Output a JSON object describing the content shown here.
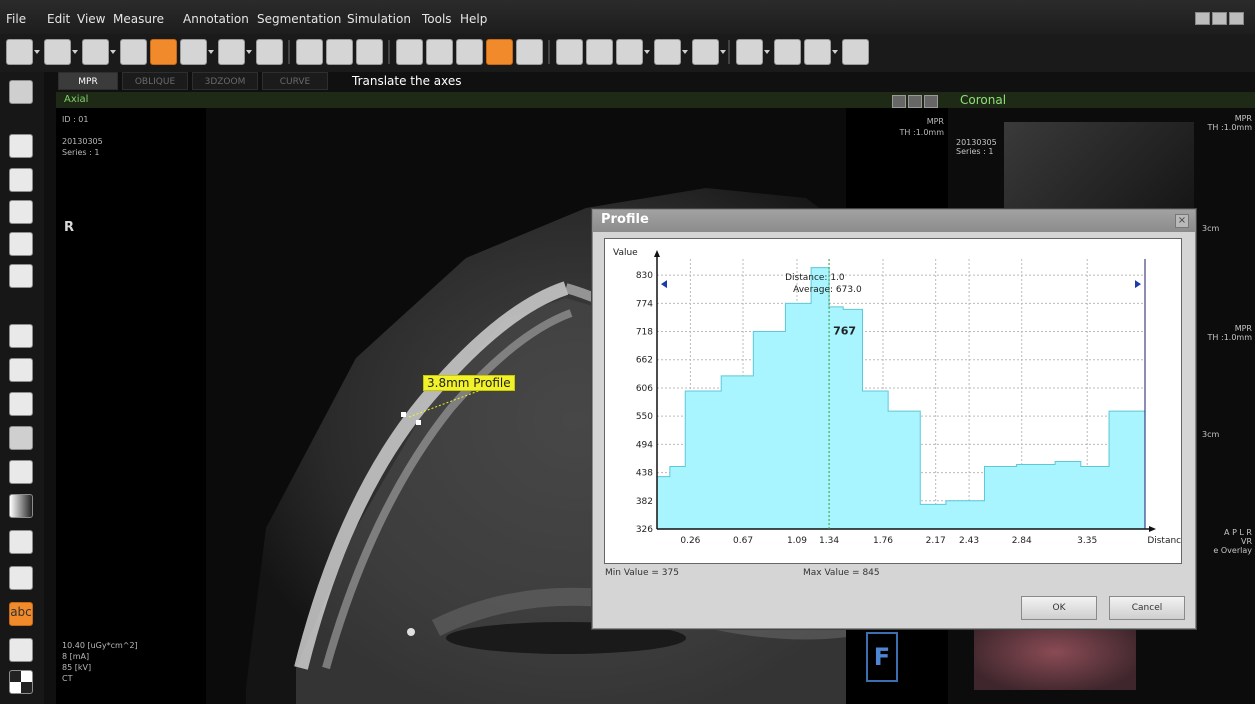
{
  "menu": [
    "File",
    "Edit",
    "View",
    "Measure",
    "Annotation",
    "Segmentation",
    "Simulation",
    "Tools",
    "Help"
  ],
  "view_tabs": [
    "MPR",
    "OBLIQUE",
    "3DZOOM",
    "CURVE"
  ],
  "hint": "Translate the axes",
  "axial": {
    "title": "Axial",
    "info_top": [
      "ID : 01",
      "",
      "20130305",
      "Series : 1"
    ],
    "orientation": "R",
    "mode": "MPR",
    "thickness": "TH :1.0mm",
    "info_bottom": [
      "10.40 [uGy*cm^2]",
      "8 [mA]",
      "85 [kV]",
      "CT"
    ],
    "profile_label": "3.8mm Profile",
    "f_marker": "F"
  },
  "coronal": {
    "title": "Coronal",
    "info": [
      "20130305",
      "Series : 1"
    ],
    "mode_label": "MPR",
    "thickness": "TH :1.0mm",
    "scale_label": "3cm",
    "axis_letters": "A P L R",
    "overlay_lines": [
      "VR",
      "e Overlay"
    ]
  },
  "dialog": {
    "title": "Profile",
    "min_value": "Min Value = 375",
    "max_value": "Max Value = 845",
    "ok": "OK",
    "cancel": "Cancel"
  },
  "chart_data": {
    "type": "area",
    "ylabel": "Value",
    "xlabel": "Distance",
    "y_ticks": [
      326,
      382,
      438,
      494,
      550,
      606,
      662,
      718,
      774,
      830
    ],
    "x_ticks": [
      "0.26",
      "0.67",
      "1.09",
      "1.34",
      "1.76",
      "2.17",
      "2.43",
      "2.84",
      "3.35"
    ],
    "ylim": [
      326,
      862
    ],
    "xlim": [
      0,
      3.8
    ],
    "x": [
      0.0,
      0.1,
      0.22,
      0.5,
      0.75,
      1.0,
      1.2,
      1.34,
      1.45,
      1.6,
      1.8,
      2.05,
      2.25,
      2.55,
      2.8,
      3.1,
      3.3,
      3.52,
      3.8
    ],
    "values": [
      430,
      450,
      600,
      630,
      718,
      774,
      845,
      767,
      762,
      600,
      560,
      375,
      382,
      450,
      454,
      460,
      450,
      560,
      560
    ],
    "annotations": {
      "distance": "Distance: 1.0",
      "average": "Average: 673.0",
      "cursor_value": "767",
      "cursor_x": 1.34
    },
    "grid": true
  }
}
